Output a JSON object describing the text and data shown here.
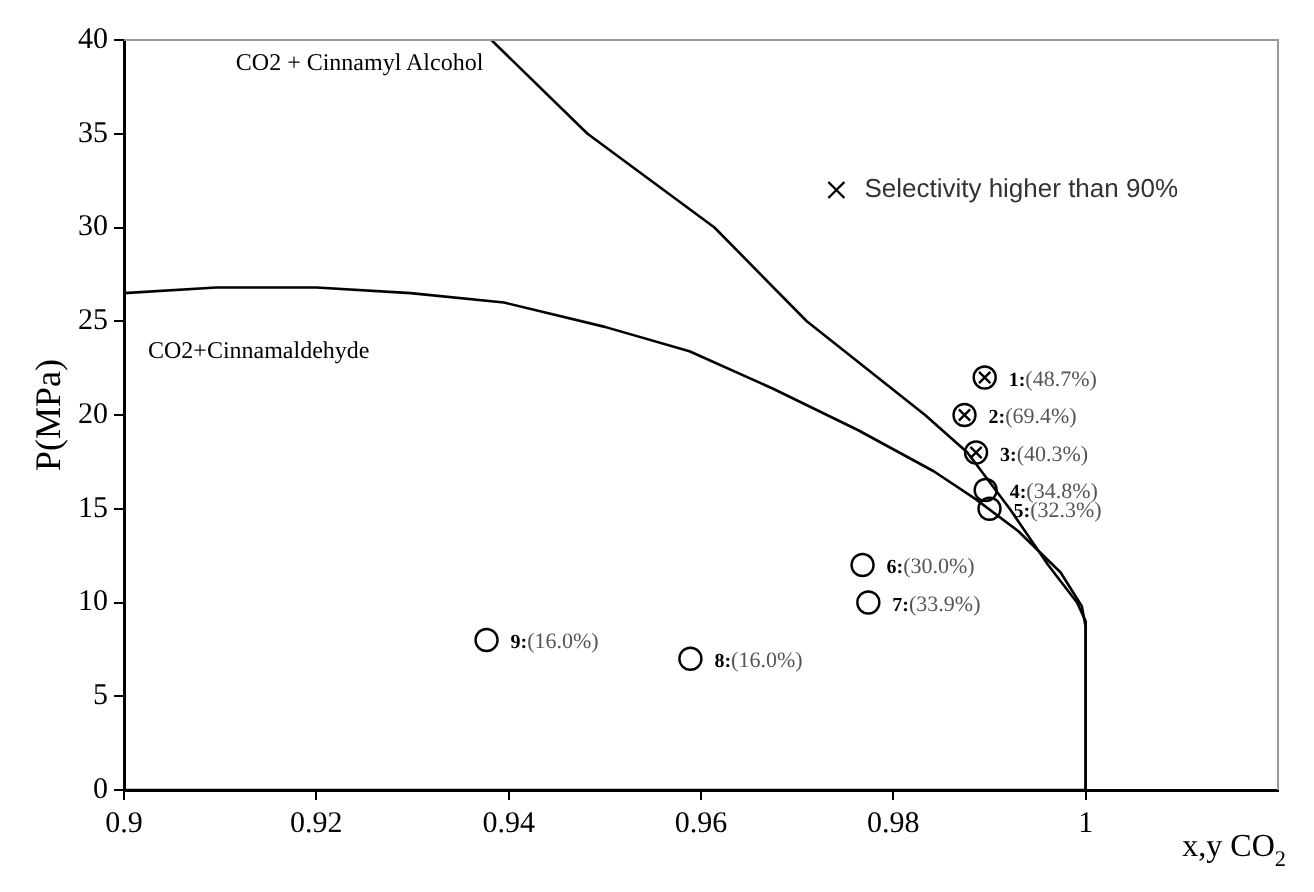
{
  "chart_data": {
    "type": "line",
    "xlabel": "x,y CO$_{2}$",
    "ylabel": "P(MPa)",
    "xlim": [
      0.9,
      1.02
    ],
    "ylim": [
      0,
      40
    ],
    "xticks": [
      0.9,
      0.92,
      0.94,
      0.96,
      0.98,
      1
    ],
    "yticks": [
      0,
      5,
      10,
      15,
      20,
      25,
      30,
      35,
      40
    ],
    "grid": false,
    "legend": "top right",
    "series": [
      {
        "name": "CO2 + Cinnamyl Alcohol",
        "color": "#000000",
        "marker": "none",
        "x": [
          0.9,
          0.95,
          1,
          1,
          0.9991,
          0.9961,
          0.9921,
          0.9877,
          0.9833,
          0.971,
          0.9614,
          0.9482,
          0.9382
        ],
        "values": [
          0,
          0,
          0,
          9,
          10,
          12,
          15,
          18,
          20,
          25,
          30,
          35,
          40
        ]
      },
      {
        "name": "CO2+Cinnamaldehyde",
        "color": "#000000",
        "marker": "none",
        "x": [
          0.9,
          0.9096,
          0.92,
          0.9298,
          0.9395,
          0.95,
          0.9588,
          0.9675,
          0.9763,
          0.9842,
          0.9886,
          0.993,
          0.9974,
          0.9996,
          1,
          1
        ],
        "values": [
          26.5,
          26.8,
          26.8,
          26.5,
          26,
          24.7,
          23.4,
          21.4,
          19.2,
          17,
          15.5,
          13.8,
          11.6,
          9.8,
          8.7,
          0
        ]
      },
      {
        "type": "scatter",
        "color": "#000000",
        "marker": "circle",
        "x": [
          0.9896,
          0.99,
          0.9768,
          0.9774,
          0.9589,
          0.9377
        ],
        "values": [
          16,
          15,
          12,
          10,
          7,
          8
        ]
      },
      {
        "name": "Selectivity higher than 90%",
        "type": "scatter",
        "color": "#000000",
        "marker": "cross",
        "x": [
          0.9895,
          0.9874,
          0.9886
        ],
        "values": [
          22,
          20,
          18
        ]
      }
    ],
    "annotations": [
      {
        "text": "1:(48.7%)",
        "x": 0.9895,
        "y": 22
      },
      {
        "text": "2:(69.4%)",
        "x": 0.9874,
        "y": 20
      },
      {
        "text": "3:(40.3%)",
        "x": 0.9886,
        "y": 18
      },
      {
        "text": "4:(34.8%)",
        "x": 0.9896,
        "y": 16
      },
      {
        "text": "5:(32.3%)",
        "x": 0.99,
        "y": 15
      },
      {
        "text": "6:(30.0%)",
        "x": 0.9768,
        "y": 12
      },
      {
        "text": "7:(33.9%)",
        "x": 0.9774,
        "y": 10
      },
      {
        "text": "8:(16.0%)",
        "x": 0.9589,
        "y": 7
      },
      {
        "text": "9:(16.0%)",
        "x": 0.9377,
        "y": 8
      }
    ]
  }
}
